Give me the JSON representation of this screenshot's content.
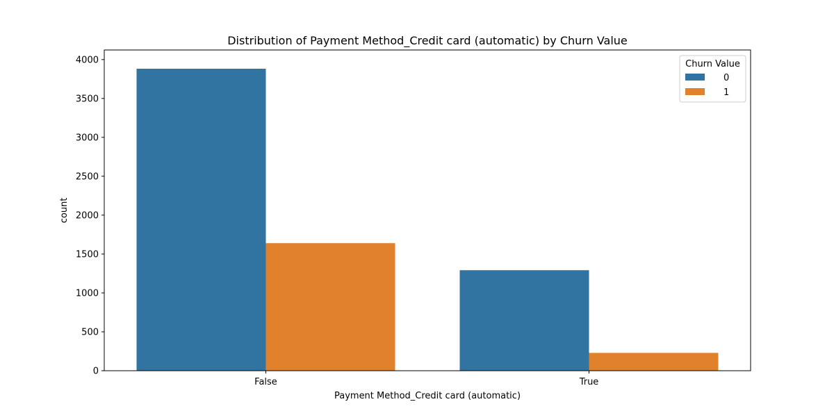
{
  "chart_data": {
    "type": "bar",
    "title": "Distribution of Payment Method_Credit card (automatic) by Churn Value",
    "xlabel": "Payment Method_Credit card (automatic)",
    "ylabel": "count",
    "categories": [
      "False",
      "True"
    ],
    "series": [
      {
        "name": "0",
        "color": "#3274a1",
        "values": [
          3882,
          1292
        ]
      },
      {
        "name": "1",
        "color": "#e1812c",
        "values": [
          1640,
          229
        ]
      }
    ],
    "ylim": [
      0,
      4123
    ],
    "yticks": [
      0,
      500,
      1000,
      1500,
      2000,
      2500,
      3000,
      3500,
      4000
    ],
    "grid": false,
    "legend": {
      "title": "Churn Value",
      "placement": "top-right"
    }
  }
}
